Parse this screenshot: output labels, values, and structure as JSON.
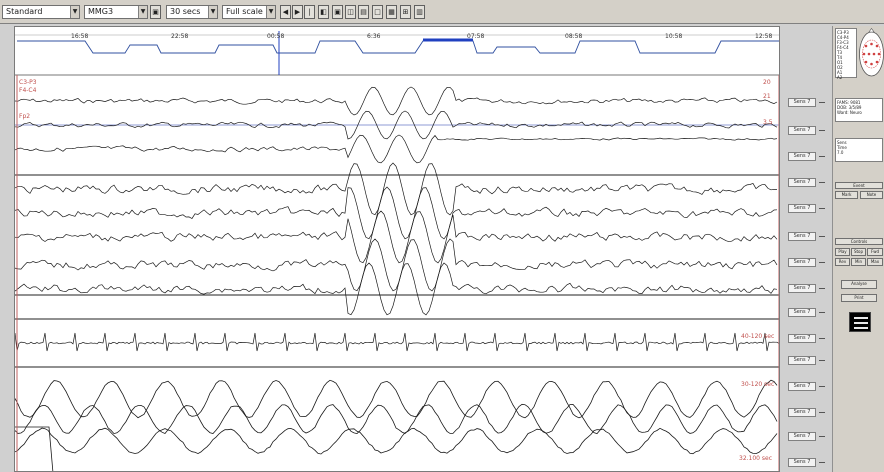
{
  "toolbar": {
    "filter_select": "Standard",
    "montage_select": "MMG3",
    "timebase_select": "30 secs",
    "scale_select": "Full scale",
    "buttons": [
      "◀",
      "▶",
      "|",
      "◧",
      "▣",
      "◫",
      "▤",
      "□",
      "▦",
      "⊞",
      "▥"
    ]
  },
  "overview": {
    "time_labels": [
      "16:58",
      "22:58",
      "00:58",
      "6:36",
      "07:58",
      "08:58",
      "10:58",
      "12:58"
    ]
  },
  "channels": {
    "top_labels": [
      "C3-P3",
      "F4-C4",
      "Fp2"
    ],
    "right_labels": [
      "20",
      "21",
      "3.5",
      "40-120 sec",
      "30-120 sec",
      "32.100 sec"
    ]
  },
  "scale_buttons": [
    "Sens 7",
    "Sens 7",
    "Sens 7",
    "Sens 7",
    "Sens 7",
    "Sens 7",
    "Sens 7",
    "Sens 7",
    "Sens 7",
    "Sens 7",
    "Sens 7",
    "Sens 7",
    "Sens 7",
    "Sens 7",
    "Sens 7",
    "Sens 7"
  ],
  "side": {
    "montage_items": [
      "C3-P3",
      "C4-P4",
      "F3-C3",
      "F4-C4",
      "T3",
      "T4",
      "O1",
      "O2",
      "A1",
      "A2"
    ],
    "info1": [
      "FAMS: 9081",
      "DOB: 3/5/89",
      "Ward: Neuro"
    ],
    "info2_headers": [
      "Sens",
      "Time"
    ],
    "info2_rows": [
      "7.0",
      "3.5",
      "1.0"
    ],
    "event_label": "Event",
    "event_buttons": [
      "Mark",
      "Note"
    ],
    "control_label": "Controls",
    "control_buttons": [
      "Play",
      "Stop",
      "Fwd",
      "Rev",
      "Min",
      "Max"
    ],
    "analysis_button": "Analyse",
    "extra_button": "Print"
  }
}
